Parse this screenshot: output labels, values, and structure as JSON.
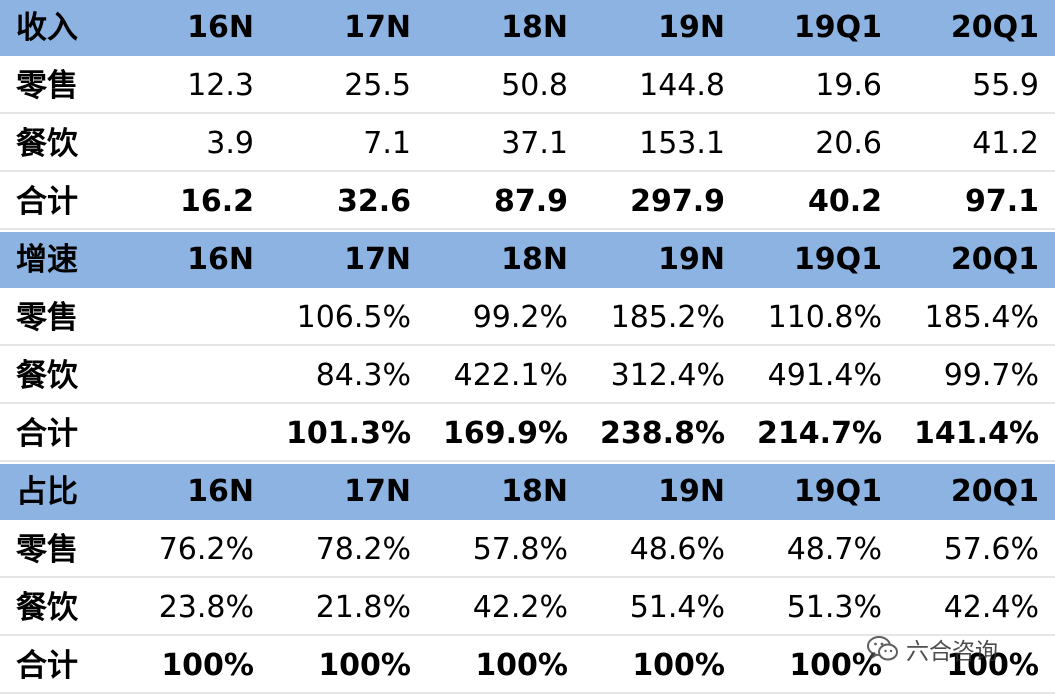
{
  "chart_data": {
    "type": "table",
    "columns": [
      "16N",
      "17N",
      "18N",
      "19N",
      "19Q1",
      "20Q1"
    ],
    "sections": [
      {
        "title": "收入",
        "rows": [
          {
            "label": "零售",
            "values": [
              "12.3",
              "25.5",
              "50.8",
              "144.8",
              "19.6",
              "55.9"
            ]
          },
          {
            "label": "餐饮",
            "values": [
              "3.9",
              "7.1",
              "37.1",
              "153.1",
              "20.6",
              "41.2"
            ]
          },
          {
            "label": "合计",
            "values": [
              "16.2",
              "32.6",
              "87.9",
              "297.9",
              "40.2",
              "97.1"
            ],
            "total": true
          }
        ]
      },
      {
        "title": "增速",
        "rows": [
          {
            "label": "零售",
            "values": [
              "",
              "106.5%",
              "99.2%",
              "185.2%",
              "110.8%",
              "185.4%"
            ]
          },
          {
            "label": "餐饮",
            "values": [
              "",
              "84.3%",
              "422.1%",
              "312.4%",
              "491.4%",
              "99.7%"
            ]
          },
          {
            "label": "合计",
            "values": [
              "",
              "101.3%",
              "169.9%",
              "238.8%",
              "214.7%",
              "141.4%"
            ],
            "total": true
          }
        ]
      },
      {
        "title": "占比",
        "rows": [
          {
            "label": "零售",
            "values": [
              "76.2%",
              "78.2%",
              "57.8%",
              "48.6%",
              "48.7%",
              "57.6%"
            ]
          },
          {
            "label": "餐饮",
            "values": [
              "23.8%",
              "21.8%",
              "42.2%",
              "51.4%",
              "51.3%",
              "42.4%"
            ]
          },
          {
            "label": "合计",
            "values": [
              "100%",
              "100%",
              "100%",
              "100%",
              "100%",
              "100%"
            ],
            "total": true
          }
        ]
      }
    ],
    "colors": {
      "header_background": "#8db3e2",
      "row_separator": "#e6e6e6"
    }
  },
  "watermark": {
    "text": "六合咨询",
    "icon": "wechat-icon"
  }
}
